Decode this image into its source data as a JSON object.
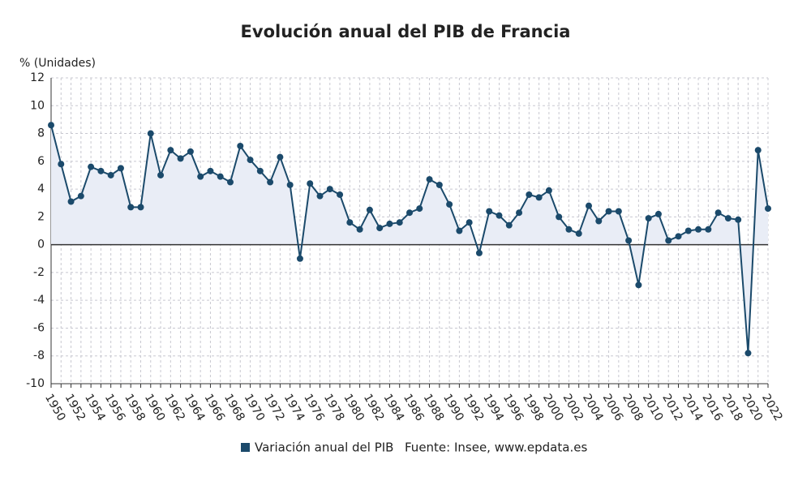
{
  "chart_data": {
    "type": "line",
    "title": "Evolución anual del PIB de Francia",
    "y_label": "% (Unidades)",
    "source": "Fuente: Insee, www.epdata.es",
    "categories": [
      "1950",
      null,
      "1952",
      null,
      "1954",
      null,
      "1956",
      null,
      "1958",
      null,
      "1960",
      null,
      "1962",
      null,
      "1964",
      null,
      "1966",
      null,
      "1968",
      null,
      "1970",
      null,
      "1972",
      null,
      "1974",
      null,
      "1976",
      null,
      "1978",
      null,
      "1980",
      null,
      "1982",
      null,
      "1984",
      null,
      "1986",
      null,
      "1988",
      null,
      "1990",
      null,
      "1992",
      null,
      "1994",
      null,
      "1996",
      null,
      "1998",
      null,
      "2000",
      null,
      "2002",
      null,
      "2004",
      null,
      "2006",
      null,
      "2008",
      null,
      "2010",
      null,
      "2012",
      null,
      "2014",
      null,
      "2016",
      null,
      "2018",
      null,
      "2020",
      null,
      "2022"
    ],
    "series": [
      {
        "name": "Variación anual del PIB",
        "color": "#1b4a6b",
        "values": [
          8.6,
          5.8,
          3.1,
          3.5,
          5.6,
          5.3,
          5.0,
          5.5,
          2.7,
          2.7,
          8.0,
          5.0,
          6.8,
          6.2,
          6.7,
          4.9,
          5.3,
          4.9,
          4.5,
          7.1,
          6.1,
          5.3,
          4.5,
          6.3,
          4.3,
          -1.0,
          4.4,
          3.5,
          4.0,
          3.6,
          1.6,
          1.1,
          2.5,
          1.2,
          1.5,
          1.6,
          2.3,
          2.6,
          4.7,
          4.3,
          2.9,
          1.0,
          1.6,
          -0.6,
          2.4,
          2.1,
          1.4,
          2.3,
          3.6,
          3.4,
          3.9,
          2.0,
          1.1,
          0.8,
          2.8,
          1.7,
          2.4,
          2.4,
          0.3,
          -2.9,
          1.9,
          2.2,
          0.3,
          0.6,
          1.0,
          1.1,
          1.1,
          2.3,
          1.9,
          1.8,
          -7.8,
          6.8,
          2.6
        ]
      }
    ],
    "ylim": [
      -10,
      12
    ],
    "yticks": [
      -10,
      -8,
      -6,
      -4,
      -2,
      0,
      2,
      4,
      6,
      8,
      10,
      12
    ],
    "grid": true,
    "area_fill": "#e9edf6"
  }
}
